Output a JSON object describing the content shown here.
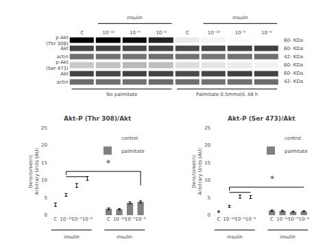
{
  "chart_data": [
    {
      "type": "heatmap",
      "categories": [
        "C",
        "10⁻¹⁰",
        "10⁻⁹",
        "10⁻⁸",
        "C",
        "10⁻¹⁰",
        "10⁻⁹",
        "10⁻⁸"
      ],
      "series": [
        {
          "name": "p-Akt\n(Thr 308)",
          "label": "60- KDa",
          "values": [
            0.88,
            0.88,
            0.85,
            0.78,
            0.18,
            0.15,
            0.13,
            0.12
          ]
        },
        {
          "name": "Akt",
          "label": "60- KDa",
          "values": [
            0.68,
            0.68,
            0.67,
            0.68,
            0.66,
            0.67,
            0.68,
            0.69
          ]
        },
        {
          "name": "actin",
          "label": "42- KDa",
          "values": [
            0.55,
            0.54,
            0.53,
            0.55,
            0.54,
            0.53,
            0.54,
            0.55
          ]
        },
        {
          "name": "p-Akt\n(Ser 473)",
          "label": "60- KDa",
          "values": [
            0.28,
            0.3,
            0.33,
            0.31,
            0.22,
            0.2,
            0.18,
            0.16
          ]
        },
        {
          "name": "Akt",
          "label": "60- KDa",
          "values": [
            0.68,
            0.67,
            0.69,
            0.68,
            0.66,
            0.67,
            0.69,
            0.68
          ]
        },
        {
          "name": "actin",
          "label": "42- KDa",
          "values": [
            0.56,
            0.55,
            0.54,
            0.56,
            0.55,
            0.54,
            0.55,
            0.56
          ]
        }
      ],
      "annotations": [
        {
          "text": "insulin",
          "from": 1,
          "to": 3,
          "position": "above"
        },
        {
          "text": "insulin",
          "from": 5,
          "to": 7,
          "position": "above"
        },
        {
          "text": "No palmitate",
          "from": 0,
          "to": 3,
          "position": "below"
        },
        {
          "text": "Palmitate 0.5mmol/L 48 h",
          "from": 4,
          "to": 7,
          "position": "below"
        }
      ]
    },
    {
      "type": "bar",
      "title": "Akt-P (Thr 308)/Akt",
      "ylabel": "Densitometric\nArbitrary Units (AU)",
      "categories": [
        "C",
        "10⁻¹⁰",
        "10⁻⁹",
        "10⁻⁸",
        null,
        "C",
        "10⁻¹⁰",
        "10⁻⁹",
        "10⁻⁸"
      ],
      "series": [
        {
          "name": "control",
          "color": "#ffffff",
          "values": [
            3.0,
            5.8,
            8.5,
            10.5,
            null,
            null,
            null,
            null,
            null
          ],
          "errors": [
            0.5,
            0.4,
            0.55,
            0.55,
            null,
            null,
            null,
            null,
            null
          ]
        },
        {
          "name": "palmitate",
          "color": "#808080",
          "values": [
            null,
            null,
            null,
            null,
            null,
            1.8,
            1.7,
            3.5,
            3.8
          ],
          "errors": [
            null,
            null,
            null,
            null,
            null,
            0.25,
            0.2,
            0.3,
            0.3
          ]
        }
      ],
      "ylim": [
        0,
        25
      ],
      "yticks": [
        0,
        5,
        10,
        15,
        20,
        25
      ],
      "grid": false,
      "legend": "upper right",
      "annotations": [
        {
          "text": "insulin",
          "from": 0,
          "to": 3,
          "position": "below"
        },
        {
          "text": "insulin",
          "from": 5,
          "to": 8,
          "position": "below"
        },
        {
          "text": "*",
          "x": 5,
          "y": 13.2
        },
        {
          "x": [
            1,
            1
          ],
          "y": [
            11.5,
            12.5
          ]
        },
        {
          "x": [
            1,
            8
          ],
          "y": [
            12.5,
            12.5
          ]
        },
        {
          "x": [
            8,
            8
          ],
          "y": [
            12.5,
            8.5
          ]
        },
        {
          "x": [
            1,
            3
          ],
          "y": [
            11.0,
            11.0
          ]
        }
      ]
    },
    {
      "type": "bar",
      "title": "Akt-P (Ser 473)/Akt",
      "ylabel": "Densitometric\nArbitrary Units (AU)",
      "categories": [
        "C",
        "10⁻¹⁰",
        "10⁻⁹",
        "10⁻⁸",
        null,
        "C",
        "10⁻¹⁰",
        "10⁻⁹",
        "10⁻⁸"
      ],
      "series": [
        {
          "name": "control",
          "color": "#ffffff",
          "values": [
            1.0,
            2.5,
            5.3,
            5.2,
            null,
            null,
            null,
            null,
            null
          ],
          "errors": [
            0.2,
            0.3,
            0.45,
            0.4,
            null,
            null,
            null,
            null,
            null
          ]
        },
        {
          "name": "palmitate",
          "color": "#808080",
          "values": [
            null,
            null,
            null,
            null,
            null,
            1.3,
            1.2,
            1.0,
            1.1
          ],
          "errors": [
            null,
            null,
            null,
            null,
            null,
            0.2,
            0.2,
            0.15,
            0.15
          ]
        }
      ],
      "ylim": [
        0,
        25
      ],
      "yticks": [
        0,
        5,
        10,
        15,
        20,
        25
      ],
      "grid": false,
      "legend": "upper right",
      "annotations": [
        {
          "text": "insulin",
          "from": 0,
          "to": 3,
          "position": "below"
        },
        {
          "text": "insulin",
          "from": 5,
          "to": 8,
          "position": "below"
        },
        {
          "text": "*",
          "x": 5,
          "y": 8.7
        },
        {
          "x": [
            1,
            1
          ],
          "y": [
            7.0,
            8.0
          ]
        },
        {
          "x": [
            1,
            8
          ],
          "y": [
            8.0,
            8.0
          ]
        },
        {
          "x": [
            8,
            8
          ],
          "y": [
            8.0,
            8.0
          ]
        },
        {
          "x": [
            1,
            3
          ],
          "y": [
            6.5,
            6.5
          ]
        }
      ]
    }
  ]
}
